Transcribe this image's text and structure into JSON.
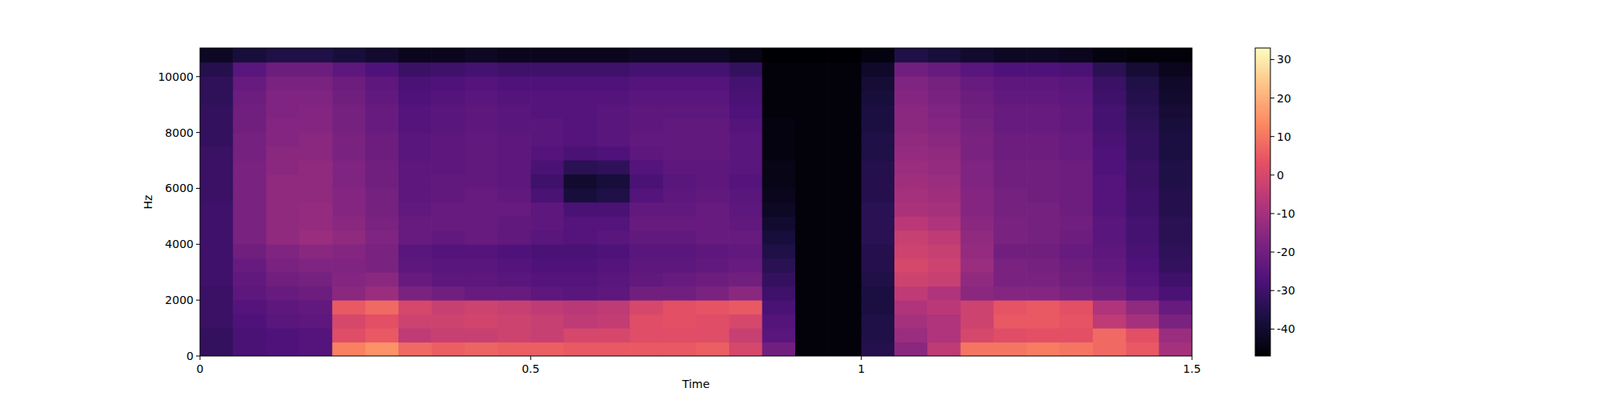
{
  "chart_data": {
    "type": "heatmap",
    "x_label": "Time",
    "y_label": "Hz",
    "xlim": [
      0,
      1.5
    ],
    "ylim": [
      0,
      11025
    ],
    "xticks": [
      0,
      0.5,
      1,
      1.5
    ],
    "yticks": [
      0,
      2000,
      4000,
      6000,
      8000,
      10000
    ],
    "colorbar": {
      "range": [
        -47,
        33
      ],
      "ticks": [
        -40,
        -30,
        -20,
        -10,
        0,
        10,
        20,
        30
      ]
    },
    "cells": [
      [
        -32,
        -28,
        -27,
        -26,
        12,
        15,
        8,
        6,
        7,
        6,
        6,
        5,
        5,
        5,
        5,
        6,
        0,
        -20,
        -46,
        -46,
        -35,
        -15,
        -5,
        10,
        10,
        11,
        10,
        8,
        5,
        -10
      ],
      [
        -32,
        -28,
        -27,
        -26,
        2,
        5,
        -5,
        -3,
        -3,
        -2,
        -3,
        0,
        0,
        2,
        2,
        2,
        -3,
        -25,
        -46,
        -46,
        -36,
        -12,
        -8,
        0,
        2,
        3,
        3,
        8,
        3,
        -12
      ],
      [
        -31,
        -27,
        -25,
        -24,
        0,
        3,
        -2,
        -2,
        -1,
        -2,
        -3,
        -5,
        -4,
        2,
        3,
        2,
        0,
        -26,
        -46,
        -46,
        -36,
        -10,
        -8,
        -2,
        5,
        5,
        4,
        -5,
        -10,
        -18
      ],
      [
        -31,
        -26,
        -24,
        -23,
        5,
        8,
        0,
        -3,
        -2,
        -3,
        -5,
        -6,
        -5,
        0,
        3,
        4,
        5,
        -28,
        -46,
        -46,
        -37,
        -8,
        -6,
        -2,
        4,
        5,
        3,
        -8,
        -14,
        -22
      ],
      [
        -31,
        -24,
        -22,
        -21,
        -15,
        -12,
        -18,
        -20,
        -22,
        -22,
        -24,
        -25,
        -24,
        -20,
        -20,
        -18,
        -15,
        -30,
        -46,
        -46,
        -37,
        -5,
        -8,
        -15,
        -16,
        -16,
        -18,
        -20,
        -24,
        -28
      ],
      [
        -30,
        -23,
        -20,
        -19,
        -16,
        -15,
        -22,
        -24,
        -24,
        -25,
        -26,
        -26,
        -25,
        -23,
        -22,
        -21,
        -20,
        -32,
        -46,
        -46,
        -36,
        -2,
        -3,
        -14,
        -18,
        -18,
        -20,
        -22,
        -26,
        -30
      ],
      [
        -30,
        -22,
        -18,
        -17,
        -17,
        -18,
        -24,
        -25,
        -25,
        -26,
        -27,
        -27,
        -26,
        -24,
        -24,
        -23,
        -22,
        -34,
        -46,
        -46,
        -35,
        0,
        -2,
        -12,
        -18,
        -19,
        -21,
        -23,
        -27,
        -32
      ],
      [
        -30,
        -20,
        -17,
        -15,
        -16,
        -18,
        -25,
        -26,
        -26,
        -27,
        -28,
        -28,
        -27,
        -25,
        -25,
        -24,
        -23,
        -36,
        -46,
        -46,
        -35,
        -2,
        -3,
        -13,
        -20,
        -20,
        -22,
        -24,
        -28,
        -33
      ],
      [
        -30,
        -18,
        -14,
        -12,
        -14,
        -17,
        -22,
        -23,
        -22,
        -23,
        -25,
        -26,
        -25,
        -23,
        -23,
        -22,
        -22,
        -38,
        -46,
        -46,
        -34,
        -3,
        -5,
        -14,
        -18,
        -19,
        -21,
        -25,
        -29,
        -34
      ],
      [
        -30,
        -18,
        -14,
        -13,
        -15,
        -18,
        -22,
        -22,
        -22,
        -23,
        -24,
        -26,
        -26,
        -22,
        -22,
        -22,
        -23,
        -40,
        -46,
        -46,
        -34,
        -6,
        -8,
        -15,
        -18,
        -19,
        -20,
        -25,
        -29,
        -34
      ],
      [
        -30,
        -18,
        -14,
        -13,
        -16,
        -19,
        -23,
        -22,
        -22,
        -22,
        -24,
        -28,
        -28,
        -23,
        -23,
        -22,
        -24,
        -42,
        -46,
        -46,
        -34,
        -9,
        -10,
        -16,
        -19,
        -19,
        -21,
        -26,
        -30,
        -35
      ],
      [
        -31,
        -18,
        -14,
        -14,
        -16,
        -19,
        -24,
        -23,
        -22,
        -23,
        -28,
        -38,
        -36,
        -26,
        -24,
        -23,
        -25,
        -43,
        -46,
        -46,
        -35,
        -10,
        -11,
        -16,
        -19,
        -20,
        -21,
        -26,
        -30,
        -35
      ],
      [
        -31,
        -18,
        -14,
        -14,
        -17,
        -20,
        -24,
        -23,
        -23,
        -24,
        -30,
        -40,
        -38,
        -28,
        -25,
        -24,
        -26,
        -44,
        -46,
        -46,
        -35,
        -11,
        -12,
        -17,
        -20,
        -20,
        -21,
        -26,
        -31,
        -36
      ],
      [
        -31,
        -18,
        -15,
        -14,
        -17,
        -20,
        -24,
        -24,
        -23,
        -24,
        -28,
        -34,
        -33,
        -26,
        -24,
        -24,
        -25,
        -44,
        -46,
        -46,
        -35,
        -12,
        -13,
        -17,
        -20,
        -20,
        -21,
        -27,
        -31,
        -36
      ],
      [
        -31,
        -19,
        -15,
        -15,
        -18,
        -21,
        -25,
        -24,
        -23,
        -24,
        -26,
        -28,
        -27,
        -24,
        -23,
        -23,
        -25,
        -45,
        -46,
        -46,
        -36,
        -13,
        -14,
        -18,
        -21,
        -21,
        -22,
        -27,
        -32,
        -37
      ],
      [
        -32,
        -19,
        -16,
        -15,
        -18,
        -21,
        -25,
        -24,
        -23,
        -24,
        -25,
        -26,
        -25,
        -23,
        -23,
        -23,
        -25,
        -45,
        -46,
        -46,
        -36,
        -14,
        -15,
        -18,
        -21,
        -21,
        -22,
        -28,
        -32,
        -37
      ],
      [
        -32,
        -20,
        -16,
        -16,
        -19,
        -22,
        -26,
        -25,
        -24,
        -25,
        -25,
        -26,
        -25,
        -24,
        -23,
        -23,
        -26,
        -45,
        -46,
        -46,
        -37,
        -15,
        -16,
        -19,
        -22,
        -22,
        -23,
        -29,
        -33,
        -38
      ],
      [
        -32,
        -20,
        -17,
        -16,
        -19,
        -22,
        -26,
        -25,
        -24,
        -25,
        -26,
        -26,
        -25,
        -24,
        -24,
        -24,
        -27,
        -46,
        -46,
        -46,
        -37,
        -15,
        -17,
        -20,
        -22,
        -22,
        -23,
        -29,
        -34,
        -39
      ],
      [
        -33,
        -21,
        -17,
        -17,
        -20,
        -23,
        -27,
        -26,
        -25,
        -26,
        -26,
        -26,
        -26,
        -25,
        -25,
        -25,
        -28,
        -46,
        -46,
        -46,
        -38,
        -16,
        -18,
        -21,
        -23,
        -23,
        -24,
        -30,
        -35,
        -40
      ],
      [
        -33,
        -22,
        -18,
        -18,
        -21,
        -24,
        -28,
        -27,
        -26,
        -27,
        -27,
        -27,
        -27,
        -26,
        -26,
        -26,
        -29,
        -46,
        -46,
        -46,
        -39,
        -17,
        -19,
        -22,
        -24,
        -24,
        -25,
        -31,
        -36,
        -41
      ],
      [
        -35,
        -25,
        -21,
        -21,
        -24,
        -27,
        -31,
        -30,
        -29,
        -30,
        -30,
        -30,
        -30,
        -29,
        -29,
        -29,
        -32,
        -46,
        -46,
        -46,
        -41,
        -20,
        -22,
        -25,
        -27,
        -27,
        -28,
        -34,
        -39,
        -43
      ],
      [
        -42,
        -38,
        -36,
        -36,
        -38,
        -40,
        -43,
        -43,
        -42,
        -43,
        -43,
        -43,
        -43,
        -42,
        -42,
        -42,
        -44,
        -47,
        -47,
        -47,
        -45,
        -36,
        -38,
        -40,
        -42,
        -42,
        -43,
        -45,
        -46,
        -46
      ]
    ]
  }
}
